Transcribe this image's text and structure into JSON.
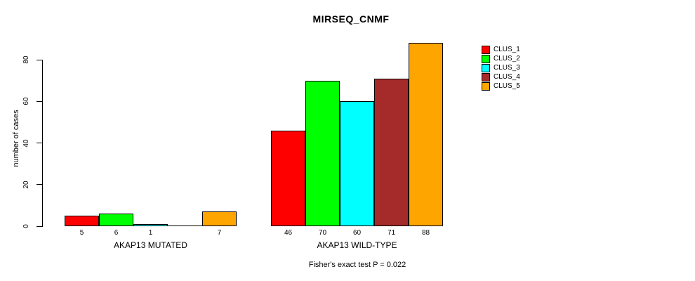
{
  "chart_data": {
    "type": "bar",
    "title": "MIRSEQ_CNMF",
    "ylabel": "number of cases",
    "xlabel": "",
    "yticks": [
      0,
      20,
      40,
      60,
      80
    ],
    "ylim": [
      0,
      88
    ],
    "grid": false,
    "legend_position": "right-outside",
    "series_names": [
      "CLUS_1",
      "CLUS_2",
      "CLUS_3",
      "CLUS_4",
      "CLUS_5"
    ],
    "series_colors": [
      "#ff0000",
      "#00ff00",
      "#00ffff",
      "#a52a2a",
      "#ffa500"
    ],
    "groups": [
      {
        "label": "AKAP13 MUTATED",
        "values": [
          5,
          6,
          1,
          0,
          7
        ]
      },
      {
        "label": "AKAP13 WILD-TYPE",
        "values": [
          46,
          70,
          60,
          71,
          88
        ]
      }
    ],
    "bar_value_labels": [
      [
        "5",
        "6",
        "1",
        "",
        "7"
      ],
      [
        "46",
        "70",
        "60",
        "71",
        "88"
      ]
    ],
    "annotation": "Fisher's exact test P = 0.022"
  }
}
